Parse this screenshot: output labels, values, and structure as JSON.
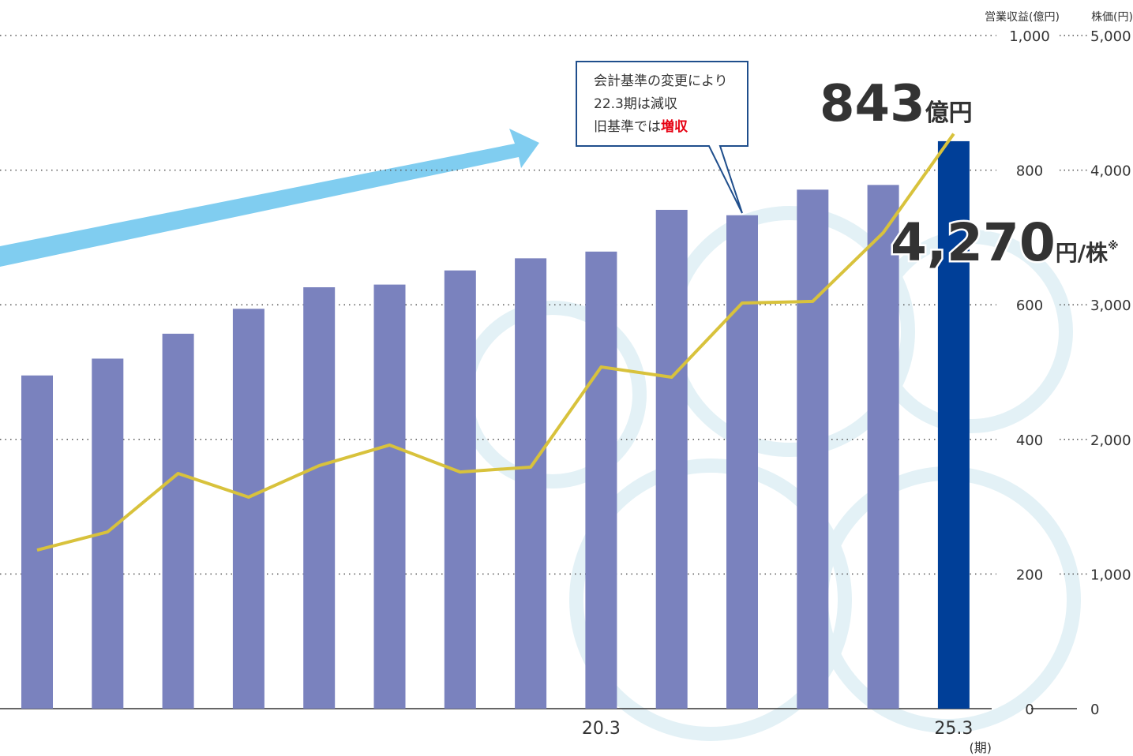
{
  "chart_data": {
    "type": "bar_line",
    "categories": [
      null,
      null,
      null,
      null,
      null,
      null,
      null,
      null,
      "20.3",
      null,
      null,
      null,
      null,
      "25.3"
    ],
    "x_unit": "(期)",
    "series": [
      {
        "name": "営業収益(億円)",
        "type": "bar",
        "color": "#7a82be",
        "colors": [
          "#7a82be",
          "#7a82be",
          "#7a82be",
          "#7a82be",
          "#7a82be",
          "#7a82be",
          "#7a82be",
          "#7a82be",
          "#7a82be",
          "#7a82be",
          "#7a82be",
          "#7a82be",
          "#7a82be",
          "#003f98"
        ],
        "values": [
          495,
          520,
          557,
          594,
          626,
          630,
          651,
          669,
          679,
          741,
          733,
          771,
          778,
          843
        ],
        "value_labels": [
          null,
          null,
          null,
          null,
          null,
          null,
          null,
          null,
          null,
          null,
          null,
          null,
          null,
          "843"
        ],
        "unit": "億円"
      },
      {
        "name": "株価(円)",
        "type": "line",
        "axis": "y2",
        "color": "#d8c23c",
        "values": [
          1178,
          1313,
          1747,
          1571,
          1805,
          1958,
          1758,
          1794,
          2538,
          2462,
          3013,
          3025,
          3535,
          4270
        ],
        "value_labels": [
          null,
          null,
          null,
          null,
          null,
          null,
          null,
          null,
          null,
          null,
          null,
          null,
          null,
          "4,270"
        ],
        "unit": "円/株",
        "note_mark": "※"
      }
    ],
    "ylim": [
      0,
      1000
    ],
    "yticks": [
      0,
      200,
      400,
      600,
      800,
      {
        "value": 1000,
        "label": "1,000"
      }
    ],
    "y2lim": [
      0,
      5000
    ],
    "y2ticks": [
      0,
      {
        "value": 1000,
        "label": "1,000"
      },
      {
        "value": 2000,
        "label": "2,000"
      },
      {
        "value": 3000,
        "label": "3,000"
      },
      {
        "value": 4000,
        "label": "4,000"
      },
      {
        "value": 5000,
        "label": "5,000"
      }
    ],
    "grid": true,
    "callout": {
      "lines": [
        "会計基準の変更により",
        "22.3期は減収",
        "旧基準では"
      ],
      "emphasis": "増収"
    }
  }
}
